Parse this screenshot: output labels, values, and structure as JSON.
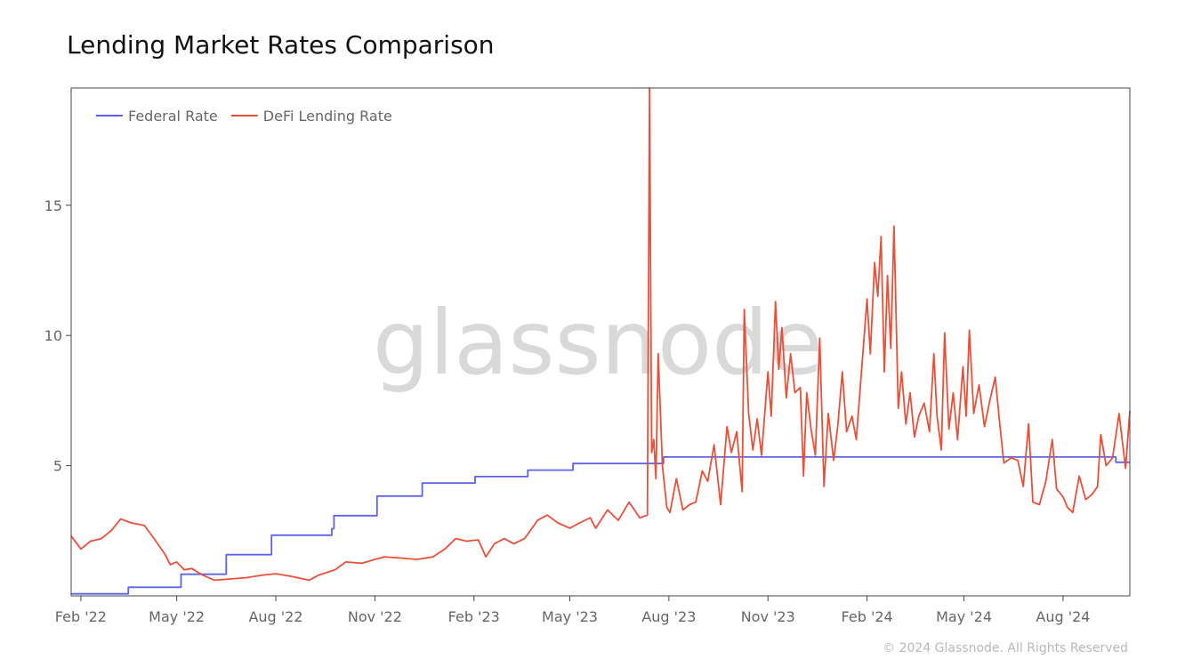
{
  "title": "Lending Market Rates Comparison",
  "footer": "© 2024 Glassnode. All Rights Reserved",
  "watermark": "glassnode",
  "colors": {
    "federal": "#5b63e8",
    "defi": "#e8503a",
    "axis": "#666666",
    "frame": "#444444"
  },
  "chart_data": {
    "type": "line",
    "title": "Lending Market Rates Comparison",
    "xlabel": "",
    "ylabel": "",
    "xlim": [
      "2022-01-23",
      "2024-10-02"
    ],
    "ylim": [
      0,
      19.5
    ],
    "grid": false,
    "legend_position": "top-left",
    "x_ticks": [
      {
        "date": "2022-02-01",
        "label": "Feb '22"
      },
      {
        "date": "2022-05-01",
        "label": "May '22"
      },
      {
        "date": "2022-08-01",
        "label": "Aug '22"
      },
      {
        "date": "2022-11-01",
        "label": "Nov '22"
      },
      {
        "date": "2023-02-01",
        "label": "Feb '23"
      },
      {
        "date": "2023-05-01",
        "label": "May '23"
      },
      {
        "date": "2023-08-01",
        "label": "Aug '23"
      },
      {
        "date": "2023-11-01",
        "label": "Nov '23"
      },
      {
        "date": "2024-02-01",
        "label": "Feb '24"
      },
      {
        "date": "2024-05-01",
        "label": "May '24"
      },
      {
        "date": "2024-08-01",
        "label": "Aug '24"
      }
    ],
    "y_ticks": [
      {
        "value": 5,
        "label": "5"
      },
      {
        "value": 10,
        "label": "10"
      },
      {
        "value": 15,
        "label": "15"
      }
    ],
    "series": [
      {
        "name": "Federal Rate",
        "color": "#5b63e8",
        "step": true,
        "points": [
          [
            "2022-01-23",
            0.08
          ],
          [
            "2022-02-01",
            0.08
          ],
          [
            "2022-03-17",
            0.33
          ],
          [
            "2022-05-05",
            0.83
          ],
          [
            "2022-06-16",
            1.58
          ],
          [
            "2022-07-28",
            2.33
          ],
          [
            "2022-09-22",
            2.58
          ],
          [
            "2022-09-24",
            3.08
          ],
          [
            "2022-11-03",
            3.83
          ],
          [
            "2022-12-15",
            4.33
          ],
          [
            "2023-02-02",
            4.58
          ],
          [
            "2023-03-23",
            4.83
          ],
          [
            "2023-05-04",
            5.08
          ],
          [
            "2023-06-15",
            5.08
          ],
          [
            "2023-07-27",
            5.33
          ],
          [
            "2024-09-19",
            5.13
          ],
          [
            "2024-10-02",
            5.13
          ]
        ]
      },
      {
        "name": "DeFi Lending Rate",
        "color": "#e8503a",
        "step": false,
        "points": [
          [
            "2022-01-23",
            2.3
          ],
          [
            "2022-02-01",
            1.8
          ],
          [
            "2022-02-10",
            2.1
          ],
          [
            "2022-02-20",
            2.2
          ],
          [
            "2022-03-01",
            2.5
          ],
          [
            "2022-03-10",
            2.95
          ],
          [
            "2022-03-20",
            2.8
          ],
          [
            "2022-04-01",
            2.7
          ],
          [
            "2022-04-10",
            2.2
          ],
          [
            "2022-04-20",
            1.6
          ],
          [
            "2022-04-25",
            1.2
          ],
          [
            "2022-05-01",
            1.3
          ],
          [
            "2022-05-08",
            1.0
          ],
          [
            "2022-05-15",
            1.05
          ],
          [
            "2022-05-25",
            0.8
          ],
          [
            "2022-06-05",
            0.6
          ],
          [
            "2022-06-20",
            0.65
          ],
          [
            "2022-07-05",
            0.7
          ],
          [
            "2022-07-20",
            0.8
          ],
          [
            "2022-08-01",
            0.85
          ],
          [
            "2022-08-15",
            0.75
          ],
          [
            "2022-09-01",
            0.6
          ],
          [
            "2022-09-10",
            0.8
          ],
          [
            "2022-09-25",
            1.0
          ],
          [
            "2022-10-05",
            1.3
          ],
          [
            "2022-10-20",
            1.25
          ],
          [
            "2022-11-01",
            1.4
          ],
          [
            "2022-11-10",
            1.5
          ],
          [
            "2022-11-25",
            1.45
          ],
          [
            "2022-12-10",
            1.4
          ],
          [
            "2022-12-25",
            1.5
          ],
          [
            "2023-01-05",
            1.8
          ],
          [
            "2023-01-15",
            2.2
          ],
          [
            "2023-01-25",
            2.1
          ],
          [
            "2023-02-05",
            2.15
          ],
          [
            "2023-02-12",
            1.5
          ],
          [
            "2023-02-20",
            2.0
          ],
          [
            "2023-03-01",
            2.2
          ],
          [
            "2023-03-10",
            2.0
          ],
          [
            "2023-03-20",
            2.2
          ],
          [
            "2023-04-01",
            2.9
          ],
          [
            "2023-04-10",
            3.1
          ],
          [
            "2023-04-20",
            2.8
          ],
          [
            "2023-05-01",
            2.6
          ],
          [
            "2023-05-10",
            2.8
          ],
          [
            "2023-05-20",
            3.0
          ],
          [
            "2023-05-25",
            2.6
          ],
          [
            "2023-06-05",
            3.3
          ],
          [
            "2023-06-15",
            2.9
          ],
          [
            "2023-06-25",
            3.6
          ],
          [
            "2023-07-05",
            3.0
          ],
          [
            "2023-07-12",
            3.1
          ],
          [
            "2023-07-14",
            19.5
          ],
          [
            "2023-07-16",
            5.5
          ],
          [
            "2023-07-18",
            6.0
          ],
          [
            "2023-07-20",
            4.5
          ],
          [
            "2023-07-22",
            9.3
          ],
          [
            "2023-07-26",
            5.0
          ],
          [
            "2023-07-30",
            3.4
          ],
          [
            "2023-08-02",
            3.2
          ],
          [
            "2023-08-08",
            4.5
          ],
          [
            "2023-08-14",
            3.3
          ],
          [
            "2023-08-20",
            3.5
          ],
          [
            "2023-08-26",
            3.6
          ],
          [
            "2023-09-01",
            4.8
          ],
          [
            "2023-09-06",
            4.4
          ],
          [
            "2023-09-12",
            5.8
          ],
          [
            "2023-09-18",
            3.5
          ],
          [
            "2023-09-24",
            6.5
          ],
          [
            "2023-09-28",
            5.5
          ],
          [
            "2023-10-03",
            6.3
          ],
          [
            "2023-10-08",
            4.0
          ],
          [
            "2023-10-10",
            11.0
          ],
          [
            "2023-10-14",
            7.0
          ],
          [
            "2023-10-18",
            5.6
          ],
          [
            "2023-10-22",
            6.8
          ],
          [
            "2023-10-26",
            5.4
          ],
          [
            "2023-11-01",
            8.6
          ],
          [
            "2023-11-04",
            6.9
          ],
          [
            "2023-11-08",
            11.3
          ],
          [
            "2023-11-11",
            8.7
          ],
          [
            "2023-11-14",
            10.3
          ],
          [
            "2023-11-18",
            7.6
          ],
          [
            "2023-11-22",
            9.3
          ],
          [
            "2023-11-26",
            7.8
          ],
          [
            "2023-12-01",
            8.0
          ],
          [
            "2023-12-04",
            4.6
          ],
          [
            "2023-12-07",
            7.8
          ],
          [
            "2023-12-11",
            6.4
          ],
          [
            "2023-12-15",
            5.4
          ],
          [
            "2023-12-19",
            9.9
          ],
          [
            "2023-12-23",
            4.2
          ],
          [
            "2023-12-27",
            7.0
          ],
          [
            "2024-01-01",
            5.2
          ],
          [
            "2024-01-05",
            6.6
          ],
          [
            "2024-01-09",
            8.6
          ],
          [
            "2024-01-13",
            6.3
          ],
          [
            "2024-01-18",
            6.9
          ],
          [
            "2024-01-22",
            6.0
          ],
          [
            "2024-02-01",
            11.4
          ],
          [
            "2024-02-04",
            9.3
          ],
          [
            "2024-02-08",
            12.8
          ],
          [
            "2024-02-11",
            11.5
          ],
          [
            "2024-02-14",
            13.8
          ],
          [
            "2024-02-17",
            8.6
          ],
          [
            "2024-02-20",
            12.3
          ],
          [
            "2024-02-23",
            9.5
          ],
          [
            "2024-02-26",
            14.2
          ],
          [
            "2024-03-01",
            7.2
          ],
          [
            "2024-03-04",
            8.6
          ],
          [
            "2024-03-08",
            6.6
          ],
          [
            "2024-03-12",
            7.8
          ],
          [
            "2024-03-16",
            6.1
          ],
          [
            "2024-03-20",
            6.9
          ],
          [
            "2024-03-25",
            7.4
          ],
          [
            "2024-03-30",
            6.3
          ],
          [
            "2024-04-03",
            9.3
          ],
          [
            "2024-04-06",
            6.9
          ],
          [
            "2024-04-10",
            5.6
          ],
          [
            "2024-04-13",
            10.1
          ],
          [
            "2024-04-17",
            6.4
          ],
          [
            "2024-04-21",
            7.8
          ],
          [
            "2024-04-25",
            6.0
          ],
          [
            "2024-04-30",
            8.8
          ],
          [
            "2024-05-03",
            6.9
          ],
          [
            "2024-05-06",
            10.2
          ],
          [
            "2024-05-10",
            7.0
          ],
          [
            "2024-05-15",
            8.1
          ],
          [
            "2024-05-20",
            6.5
          ],
          [
            "2024-05-25",
            7.5
          ],
          [
            "2024-05-30",
            8.4
          ],
          [
            "2024-06-03",
            6.7
          ],
          [
            "2024-06-07",
            5.1
          ],
          [
            "2024-06-14",
            5.3
          ],
          [
            "2024-06-20",
            5.2
          ],
          [
            "2024-06-25",
            4.2
          ],
          [
            "2024-06-30",
            6.6
          ],
          [
            "2024-07-04",
            3.6
          ],
          [
            "2024-07-10",
            3.5
          ],
          [
            "2024-07-16",
            4.4
          ],
          [
            "2024-07-22",
            6.0
          ],
          [
            "2024-07-26",
            4.1
          ],
          [
            "2024-08-01",
            3.8
          ],
          [
            "2024-08-05",
            3.4
          ],
          [
            "2024-08-10",
            3.2
          ],
          [
            "2024-08-16",
            4.6
          ],
          [
            "2024-08-22",
            3.7
          ],
          [
            "2024-08-28",
            3.9
          ],
          [
            "2024-09-02",
            4.2
          ],
          [
            "2024-09-05",
            6.2
          ],
          [
            "2024-09-10",
            5.0
          ],
          [
            "2024-09-16",
            5.3
          ],
          [
            "2024-09-22",
            7.0
          ],
          [
            "2024-09-28",
            4.9
          ],
          [
            "2024-10-02",
            7.1
          ]
        ]
      }
    ]
  }
}
